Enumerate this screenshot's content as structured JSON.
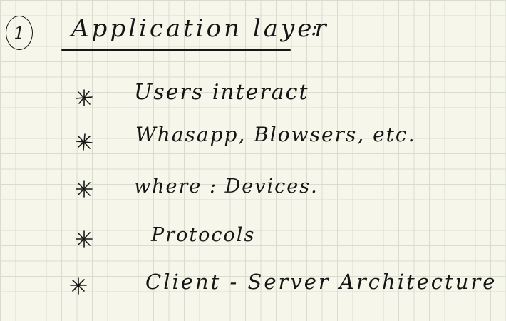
{
  "heading": {
    "number": "1",
    "title": "Application layer",
    "colon": ":"
  },
  "items": [
    {
      "text": "Users interact",
      "bullet_icon": "star-bullet-icon"
    },
    {
      "text": "Whasapp, Blowsers, etc.",
      "bullet_icon": "star-bullet-icon"
    },
    {
      "text": "where : Devices.",
      "bullet_icon": "star-bullet-icon"
    },
    {
      "text": "Protocols",
      "bullet_icon": "star-bullet-icon"
    },
    {
      "text": "Client - Server Architecture",
      "bullet_icon": "star-bullet-icon"
    }
  ],
  "colors": {
    "paper": "#f7f6ea",
    "grid": "#d9ddd0",
    "ink": "#161616"
  }
}
